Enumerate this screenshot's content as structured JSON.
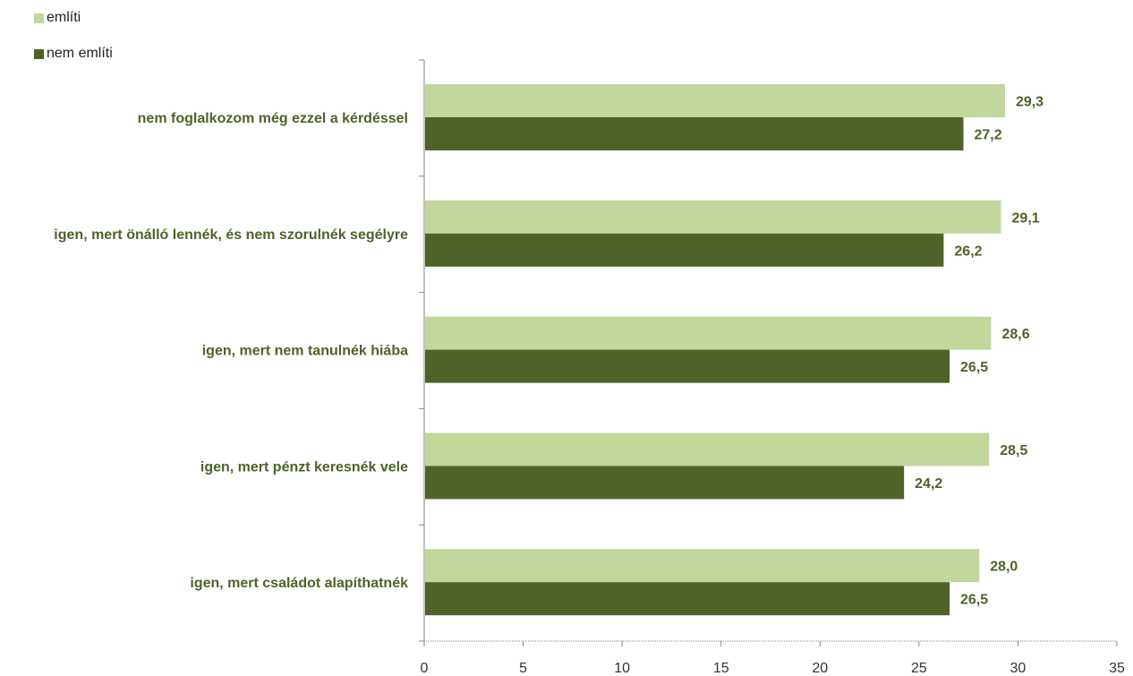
{
  "chart_data": {
    "type": "bar",
    "orientation": "horizontal",
    "categories": [
      "nem foglalkozom még ezzel a kérdéssel",
      "igen, mert önálló lennék, és nem szorulnék segélyre",
      "igen, mert nem tanulnék hiába",
      "igen, mert pénzt keresnék vele",
      "igen, mert családot alapíthatnék"
    ],
    "series": [
      {
        "name": "említi",
        "color": "#c3d69b",
        "values": [
          29.3,
          29.1,
          28.6,
          28.5,
          28.0
        ],
        "labels": [
          "29,3",
          "29,1",
          "28,6",
          "28,5",
          "28,0"
        ]
      },
      {
        "name": "nem említi",
        "color": "#4f6228",
        "values": [
          27.2,
          26.2,
          26.5,
          24.2,
          26.5
        ],
        "labels": [
          "27,2",
          "26,2",
          "26,5",
          "24,2",
          "26,5"
        ]
      }
    ],
    "xlim": [
      0,
      35
    ],
    "xticks": [
      "0",
      "5",
      "10",
      "15",
      "20",
      "25",
      "30",
      "35"
    ],
    "legend_position": "top-left",
    "grid": false,
    "label_color": "#4f6228"
  }
}
